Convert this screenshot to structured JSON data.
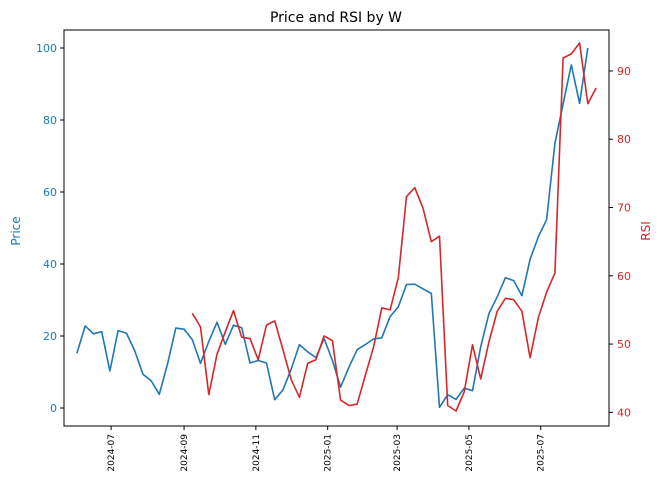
{
  "chart_data": {
    "type": "line",
    "title": "Price and RSI by W",
    "xlabel": "",
    "x_ticks": [
      "2024-07",
      "2024-09",
      "2024-11",
      "2025-01",
      "2025-03",
      "2025-05",
      "2025-07"
    ],
    "x_range": [
      "2024-05-22",
      "2025-08-28"
    ],
    "left_axis": {
      "label": "Price",
      "ticks": [
        "0",
        "20",
        "40",
        "60",
        "80",
        "100"
      ],
      "range": [
        -5,
        105
      ],
      "color": "#1f77b4"
    },
    "right_axis": {
      "label": "RSI",
      "ticks": [
        "40",
        "50",
        "60",
        "70",
        "80",
        "90"
      ],
      "range": [
        38,
        96
      ],
      "color": "#d62728"
    },
    "grid": false,
    "series": [
      {
        "axis": "left",
        "color": "#1f77b4",
        "points": [
          [
            "2024-06-02",
            15.2
          ],
          [
            "2024-06-09",
            22.8
          ],
          [
            "2024-06-16",
            20.6
          ],
          [
            "2024-06-23",
            21.2
          ],
          [
            "2024-06-30",
            10.3
          ],
          [
            "2024-07-07",
            21.5
          ],
          [
            "2024-07-14",
            20.8
          ],
          [
            "2024-07-21",
            16.0
          ],
          [
            "2024-07-28",
            9.4
          ],
          [
            "2024-08-04",
            7.6
          ],
          [
            "2024-08-11",
            3.8
          ],
          [
            "2024-08-18",
            12.3
          ],
          [
            "2024-08-25",
            22.2
          ],
          [
            "2024-09-01",
            21.9
          ],
          [
            "2024-09-08",
            19.0
          ],
          [
            "2024-09-15",
            12.4
          ],
          [
            "2024-09-22",
            18.5
          ],
          [
            "2024-09-29",
            23.8
          ],
          [
            "2024-10-06",
            17.7
          ],
          [
            "2024-10-13",
            23.0
          ],
          [
            "2024-10-20",
            22.3
          ],
          [
            "2024-10-27",
            12.5
          ],
          [
            "2024-11-03",
            13.2
          ],
          [
            "2024-11-10",
            12.5
          ],
          [
            "2024-11-17",
            2.3
          ],
          [
            "2024-11-24",
            5.0
          ],
          [
            "2024-12-01",
            10.8
          ],
          [
            "2024-12-08",
            17.6
          ],
          [
            "2024-12-15",
            15.6
          ],
          [
            "2024-12-22",
            14.0
          ],
          [
            "2024-12-29",
            19.3
          ],
          [
            "2025-01-05",
            13.2
          ],
          [
            "2025-01-12",
            5.8
          ],
          [
            "2025-01-19",
            11.3
          ],
          [
            "2025-01-26",
            16.2
          ],
          [
            "2025-02-02",
            17.6
          ],
          [
            "2025-02-09",
            19.2
          ],
          [
            "2025-02-16",
            19.5
          ],
          [
            "2025-02-23",
            25.4
          ],
          [
            "2025-03-02",
            28.1
          ],
          [
            "2025-03-09",
            34.3
          ],
          [
            "2025-03-16",
            34.4
          ],
          [
            "2025-03-23",
            33.1
          ],
          [
            "2025-03-30",
            31.8
          ],
          [
            "2025-04-06",
            0.2
          ],
          [
            "2025-04-13",
            3.7
          ],
          [
            "2025-04-20",
            2.4
          ],
          [
            "2025-04-27",
            5.5
          ],
          [
            "2025-05-04",
            4.8
          ],
          [
            "2025-05-11",
            17.0
          ],
          [
            "2025-05-18",
            26.2
          ],
          [
            "2025-05-25",
            30.9
          ],
          [
            "2025-06-01",
            36.2
          ],
          [
            "2025-06-08",
            35.4
          ],
          [
            "2025-06-15",
            31.2
          ],
          [
            "2025-06-22",
            41.3
          ],
          [
            "2025-06-29",
            47.6
          ],
          [
            "2025-07-06",
            52.3
          ],
          [
            "2025-07-13",
            73.5
          ],
          [
            "2025-07-20",
            84.5
          ],
          [
            "2025-07-27",
            95.3
          ],
          [
            "2025-08-03",
            84.6
          ],
          [
            "2025-08-10",
            100.0
          ]
        ]
      },
      {
        "axis": "right",
        "color": "#d62728",
        "points": [
          [
            "2024-09-08",
            54.5
          ],
          [
            "2024-09-15",
            52.5
          ],
          [
            "2024-09-22",
            42.6
          ],
          [
            "2024-09-29",
            48.5
          ],
          [
            "2024-10-06",
            51.8
          ],
          [
            "2024-10-13",
            54.9
          ],
          [
            "2024-10-20",
            51.0
          ],
          [
            "2024-10-27",
            50.8
          ],
          [
            "2024-11-03",
            47.7
          ],
          [
            "2024-11-10",
            52.8
          ],
          [
            "2024-11-17",
            53.4
          ],
          [
            "2024-11-24",
            49.2
          ],
          [
            "2024-12-01",
            44.8
          ],
          [
            "2024-12-08",
            42.2
          ],
          [
            "2024-12-15",
            47.2
          ],
          [
            "2024-12-22",
            47.7
          ],
          [
            "2024-12-29",
            51.2
          ],
          [
            "2025-01-05",
            50.5
          ],
          [
            "2025-01-12",
            41.8
          ],
          [
            "2025-01-19",
            41.0
          ],
          [
            "2025-01-26",
            41.2
          ],
          [
            "2025-02-02",
            45.4
          ],
          [
            "2025-02-09",
            49.6
          ],
          [
            "2025-02-16",
            55.3
          ],
          [
            "2025-02-23",
            55.0
          ],
          [
            "2025-03-02",
            59.7
          ],
          [
            "2025-03-09",
            71.6
          ],
          [
            "2025-03-16",
            72.9
          ],
          [
            "2025-03-23",
            69.9
          ],
          [
            "2025-03-30",
            65.0
          ],
          [
            "2025-04-06",
            65.8
          ],
          [
            "2025-04-13",
            41.0
          ],
          [
            "2025-04-20",
            40.2
          ],
          [
            "2025-04-27",
            43.0
          ],
          [
            "2025-05-04",
            49.9
          ],
          [
            "2025-05-11",
            44.9
          ],
          [
            "2025-05-18",
            50.3
          ],
          [
            "2025-05-25",
            54.8
          ],
          [
            "2025-06-01",
            56.7
          ],
          [
            "2025-06-08",
            56.5
          ],
          [
            "2025-06-15",
            54.8
          ],
          [
            "2025-06-22",
            48.0
          ],
          [
            "2025-06-29",
            53.9
          ],
          [
            "2025-07-06",
            57.6
          ],
          [
            "2025-07-13",
            60.4
          ],
          [
            "2025-07-20",
            91.9
          ],
          [
            "2025-07-27",
            92.5
          ],
          [
            "2025-08-03",
            94.1
          ],
          [
            "2025-08-10",
            85.2
          ],
          [
            "2025-08-17",
            87.5
          ]
        ]
      }
    ]
  }
}
